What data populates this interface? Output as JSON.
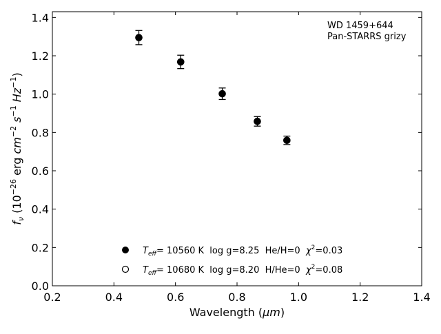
{
  "chart_data": {
    "type": "scatter",
    "xlabel": {
      "main": "Wavelength (",
      "unit": "μm",
      "close": ")"
    },
    "ylabel": {
      "symbol": "f",
      "symbol_sub": "ν",
      "open": " (10",
      "exp1": "−26",
      "unit1": " erg ",
      "cm": "cm",
      "exp2": "−2",
      "s": " s",
      "exp3": "−1",
      "hz": " Hz",
      "exp4": "−1",
      "close": ")"
    },
    "xlim": [
      0.2,
      1.4
    ],
    "ylim": [
      0.0,
      1.43
    ],
    "xticks": [
      "0.2",
      "0.4",
      "0.6",
      "0.8",
      "1.0",
      "1.2",
      "1.4"
    ],
    "yticks": [
      "0.0",
      "0.2",
      "0.4",
      "0.6",
      "0.8",
      "1.0",
      "1.2",
      "1.4"
    ],
    "grid": false,
    "annotation": {
      "line1": "WD 1459+644",
      "line2": "Pan-STARRS grizy"
    },
    "series": [
      {
        "marker": "filled-circle",
        "color": "#000000",
        "points": [
          {
            "x": 0.481,
            "y": 1.295,
            "err": 0.037
          },
          {
            "x": 0.617,
            "y": 1.168,
            "err": 0.035
          },
          {
            "x": 0.752,
            "y": 1.002,
            "err": 0.03
          },
          {
            "x": 0.866,
            "y": 0.858,
            "err": 0.025
          },
          {
            "x": 0.962,
            "y": 0.759,
            "err": 0.022
          }
        ]
      },
      {
        "marker": "open-circle",
        "color": "#000000",
        "points": [
          {
            "x": 0.481,
            "y": 1.295
          },
          {
            "x": 0.617,
            "y": 1.168
          },
          {
            "x": 0.752,
            "y": 1.002
          },
          {
            "x": 0.866,
            "y": 0.858
          },
          {
            "x": 0.962,
            "y": 0.759
          }
        ]
      }
    ],
    "legend": {
      "placement": "lower-center",
      "entries": [
        {
          "marker": "filled-circle",
          "t": "T",
          "t_sub": "eff",
          "text": "= 10560 K  log g=8.25  He/H=0  ",
          "chi": "χ",
          "chi_sup": "2",
          "chi_val": "=0.03"
        },
        {
          "marker": "open-circle",
          "t": "T",
          "t_sub": "eff",
          "text": "= 10680 K  log g=8.20  H/He=0  ",
          "chi": "χ",
          "chi_sup": "2",
          "chi_val": "=0.08"
        }
      ]
    }
  }
}
